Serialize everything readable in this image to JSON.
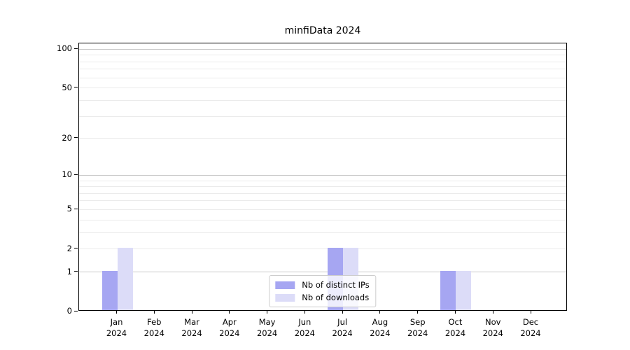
{
  "chart_data": {
    "type": "bar",
    "title": "minfiData 2024",
    "categories": [
      "Jan",
      "Feb",
      "Mar",
      "Apr",
      "May",
      "Jun",
      "Jul",
      "Aug",
      "Sep",
      "Oct",
      "Nov",
      "Dec"
    ],
    "x_axis_year": "2024",
    "series": [
      {
        "name": "Nb of distinct IPs",
        "color": "#a6a6f2",
        "values": [
          1,
          0,
          0,
          0,
          0,
          0,
          2,
          0,
          0,
          1,
          0,
          0
        ]
      },
      {
        "name": "Nb of downloads",
        "color": "#dcdcf8",
        "values": [
          2,
          0,
          0,
          0,
          0,
          0,
          2,
          0,
          0,
          1,
          0,
          0
        ]
      }
    ],
    "y_axis": {
      "scale": "log1p",
      "ticks": [
        0,
        1,
        2,
        5,
        10,
        20,
        50,
        100
      ],
      "tick_labels": [
        "0",
        "1",
        "2",
        "5",
        "10",
        "20",
        "50",
        "100"
      ],
      "minor_ticks": [
        3,
        4,
        6,
        7,
        8,
        9,
        30,
        40,
        60,
        70,
        80,
        90
      ],
      "major_grid_at": [
        1,
        10,
        100
      ],
      "ylim": [
        0,
        109
      ]
    },
    "legend": {
      "position": "lower center",
      "entries": [
        "Nb of distinct IPs",
        "Nb of downloads"
      ]
    },
    "grid": true
  },
  "colors": {
    "background": "#ffffff",
    "spine": "#000000",
    "major_grid": "#c7c7c7",
    "minor_grid": "#ebebeb",
    "legend_border": "#cccccc",
    "bar_dark": "#a6a6f2",
    "bar_light": "#dcdcf8"
  }
}
